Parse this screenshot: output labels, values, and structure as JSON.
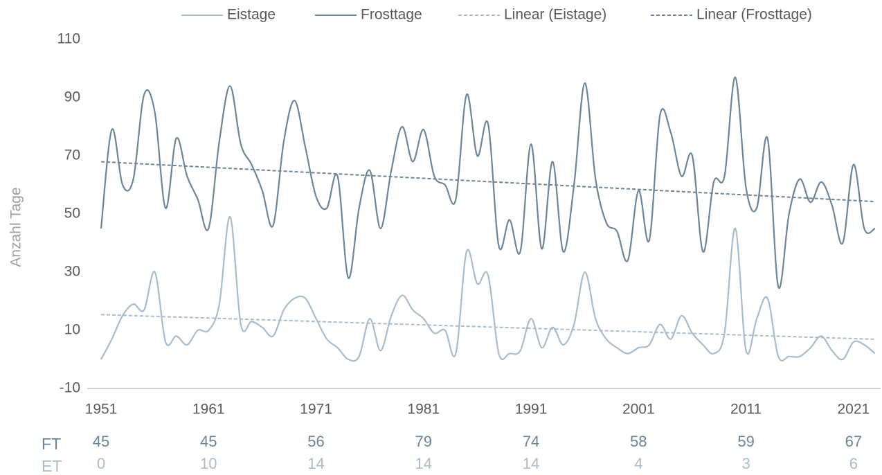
{
  "chart_data": {
    "type": "line",
    "y_label": "Anzahl Tage",
    "x": [
      1951,
      1952,
      1953,
      1954,
      1955,
      1956,
      1957,
      1958,
      1959,
      1960,
      1961,
      1962,
      1963,
      1964,
      1965,
      1966,
      1967,
      1968,
      1969,
      1970,
      1971,
      1972,
      1973,
      1974,
      1975,
      1976,
      1977,
      1978,
      1979,
      1980,
      1981,
      1982,
      1983,
      1984,
      1985,
      1986,
      1987,
      1988,
      1989,
      1990,
      1991,
      1992,
      1993,
      1994,
      1995,
      1996,
      1997,
      1998,
      1999,
      2000,
      2001,
      2002,
      2003,
      2004,
      2005,
      2006,
      2007,
      2008,
      2009,
      2010,
      2011,
      2012,
      2013,
      2014,
      2015,
      2016,
      2017,
      2018,
      2019,
      2020,
      2021,
      2022,
      2023
    ],
    "series": [
      {
        "name": "Eistage",
        "color": "#a9bccb",
        "values": [
          0,
          7,
          15,
          19,
          17,
          30,
          6,
          8,
          5,
          10,
          10,
          19,
          49,
          12,
          13,
          11,
          8,
          17,
          21,
          21,
          14,
          7,
          4,
          0,
          1,
          14,
          3,
          15,
          22,
          17,
          14,
          9,
          10,
          2,
          37,
          26,
          29,
          2,
          2,
          3,
          14,
          4,
          11,
          5,
          12,
          30,
          14,
          7,
          4,
          2,
          4,
          5,
          12,
          7,
          15,
          9,
          5,
          2,
          9,
          45,
          3,
          14,
          21,
          1,
          1,
          1,
          4,
          8,
          3,
          0,
          6,
          5,
          2
        ],
        "trendline": {
          "name": "Linear (Eistage)",
          "color": "#a9bccb",
          "dash": "dashed"
        }
      },
      {
        "name": "Frosttage",
        "color": "#6b8599",
        "values": [
          45,
          79,
          60,
          62,
          91,
          85,
          52,
          76,
          63,
          55,
          45,
          75,
          94,
          74,
          67,
          58,
          46,
          75,
          89,
          73,
          56,
          52,
          63,
          28,
          52,
          65,
          45,
          65,
          80,
          68,
          79,
          63,
          60,
          55,
          91,
          70,
          81,
          39,
          48,
          37,
          74,
          38,
          68,
          37,
          60,
          95,
          62,
          47,
          44,
          34,
          58,
          41,
          84,
          78,
          63,
          70,
          37,
          61,
          63,
          97,
          59,
          52,
          76,
          25,
          50,
          62,
          54,
          61,
          53,
          40,
          67,
          45,
          45
        ],
        "trendline": {
          "name": "Linear (Frosttage)",
          "color": "#6b8599",
          "dash": "dashed"
        }
      }
    ],
    "xlim": [
      1951,
      2023.2
    ],
    "xticks": [
      1951,
      1961,
      1971,
      1981,
      1991,
      2001,
      2011,
      2021
    ],
    "ylim": [
      -10,
      110
    ],
    "yticks": [
      -10,
      10,
      30,
      50,
      70,
      90,
      110
    ],
    "grid": false,
    "legend": "top",
    "table": [
      {
        "label": "FT",
        "color": "#6b8599",
        "values": [
          45,
          45,
          56,
          79,
          74,
          58,
          59,
          67
        ]
      },
      {
        "label": "ET",
        "color": "#a9bccb",
        "values": [
          0,
          10,
          14,
          14,
          14,
          4,
          3,
          6
        ]
      }
    ]
  }
}
